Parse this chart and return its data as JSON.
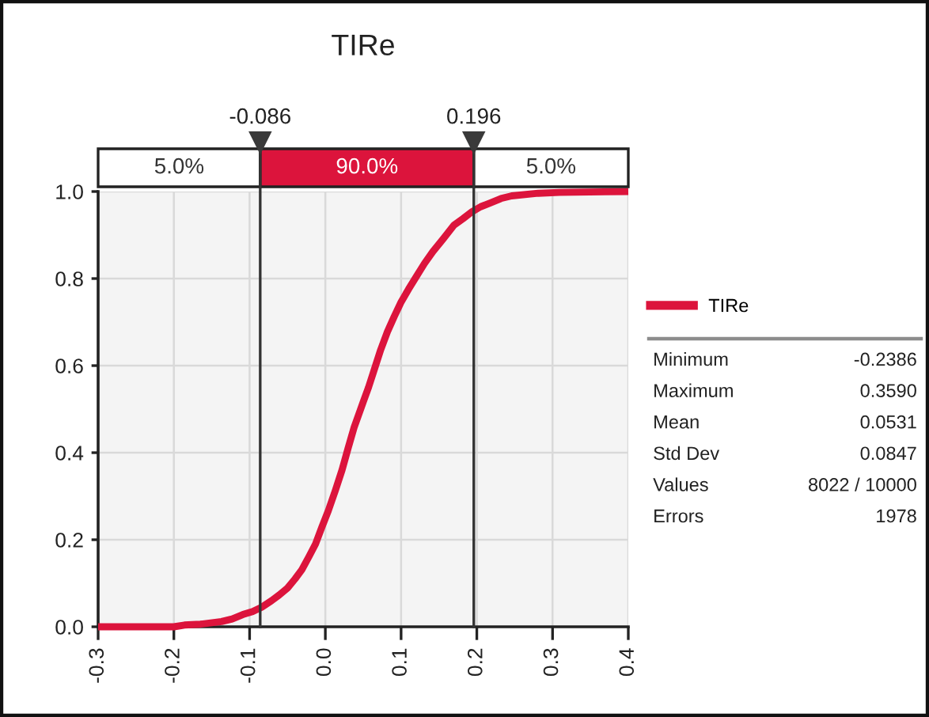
{
  "chart_data": [
    {
      "type": "line",
      "title": "TIRe",
      "series": [
        {
          "name": "TIRe",
          "color": "#dc143c",
          "x": [
            -0.3,
            -0.2,
            -0.186,
            -0.165,
            -0.137,
            -0.123,
            -0.109,
            -0.096,
            -0.084,
            -0.071,
            -0.061,
            -0.05,
            -0.04,
            -0.031,
            -0.022,
            -0.013,
            -0.005,
            0.004,
            0.013,
            0.022,
            0.03,
            0.038,
            0.048,
            0.057,
            0.065,
            0.073,
            0.082,
            0.091,
            0.1,
            0.11,
            0.121,
            0.131,
            0.142,
            0.156,
            0.17,
            0.182,
            0.194,
            0.205,
            0.218,
            0.232,
            0.246,
            0.281,
            0.309,
            0.4
          ],
          "values": [
            0.0,
            0.0,
            0.004,
            0.006,
            0.012,
            0.018,
            0.028,
            0.035,
            0.045,
            0.06,
            0.073,
            0.089,
            0.11,
            0.131,
            0.16,
            0.19,
            0.227,
            0.267,
            0.312,
            0.36,
            0.41,
            0.458,
            0.507,
            0.55,
            0.593,
            0.636,
            0.678,
            0.713,
            0.746,
            0.776,
            0.807,
            0.835,
            0.862,
            0.892,
            0.923,
            0.938,
            0.954,
            0.965,
            0.974,
            0.984,
            0.99,
            0.996,
            0.998,
            1.0
          ]
        }
      ],
      "xlim": [
        -0.3,
        0.4
      ],
      "xticks": [
        -0.3,
        -0.2,
        -0.1,
        {
          "value": 0,
          "label": "0.0"
        },
        0.1,
        0.2,
        0.3,
        0.4
      ],
      "ylim": [
        0.0,
        1.0
      ],
      "yticks": [
        {
          "value": 0,
          "label": "0.0"
        },
        0.2,
        0.4,
        0.6,
        0.8,
        {
          "value": 1,
          "label": "1.0"
        }
      ],
      "grid": true,
      "legend": "right",
      "ref_lines": [
        {
          "axis": "x",
          "value": -0.086,
          "label": "-0.086",
          "color": "#333333"
        },
        {
          "axis": "x",
          "value": 0.196,
          "label": "0.196",
          "color": "#333333"
        }
      ],
      "annotations": [
        "5.0%",
        "90.0%",
        "5.0%"
      ]
    },
    {
      "type": "other",
      "annotations": [
        "Minimum",
        "-0.2386",
        "Maximum",
        "0.3590",
        "Mean",
        "0.0531",
        "Std Dev",
        "0.0847",
        "Values",
        "8022 / 10000",
        "Errors",
        "1978"
      ]
    }
  ]
}
